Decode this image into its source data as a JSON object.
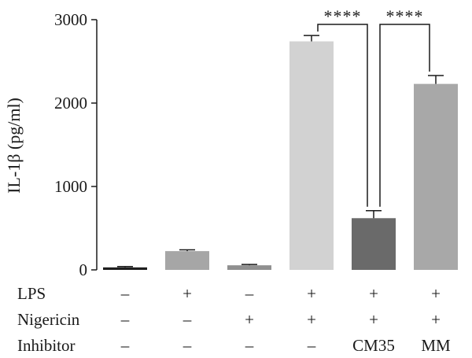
{
  "chart_data": {
    "type": "bar",
    "ylabel": "IL-1β (pg/ml)",
    "ylim": [
      0,
      3000
    ],
    "yticks": [
      "0",
      "1000",
      "2000",
      "3000"
    ],
    "values": [
      30,
      225,
      55,
      2740,
      620,
      2230
    ],
    "errors": [
      10,
      15,
      10,
      70,
      90,
      100
    ],
    "colors": [
      "#1e1e1e",
      "#a6a6a6",
      "#909090",
      "#d2d2d2",
      "#6a6a6a",
      "#a8a8a8"
    ],
    "conditions": {
      "rows": [
        {
          "label": "LPS",
          "values": [
            "–",
            "+",
            "–",
            "+",
            "+",
            "+"
          ]
        },
        {
          "label": "Nigericin",
          "values": [
            "–",
            "–",
            "+",
            "+",
            "+",
            "+"
          ]
        },
        {
          "label": "Inhibitor",
          "values": [
            "–",
            "–",
            "–",
            "–",
            "CM35",
            "MM"
          ]
        }
      ]
    },
    "significance": [
      {
        "from": 3,
        "to": 4,
        "label": "****"
      },
      {
        "from": 4,
        "to": 5,
        "label": "****"
      }
    ]
  }
}
